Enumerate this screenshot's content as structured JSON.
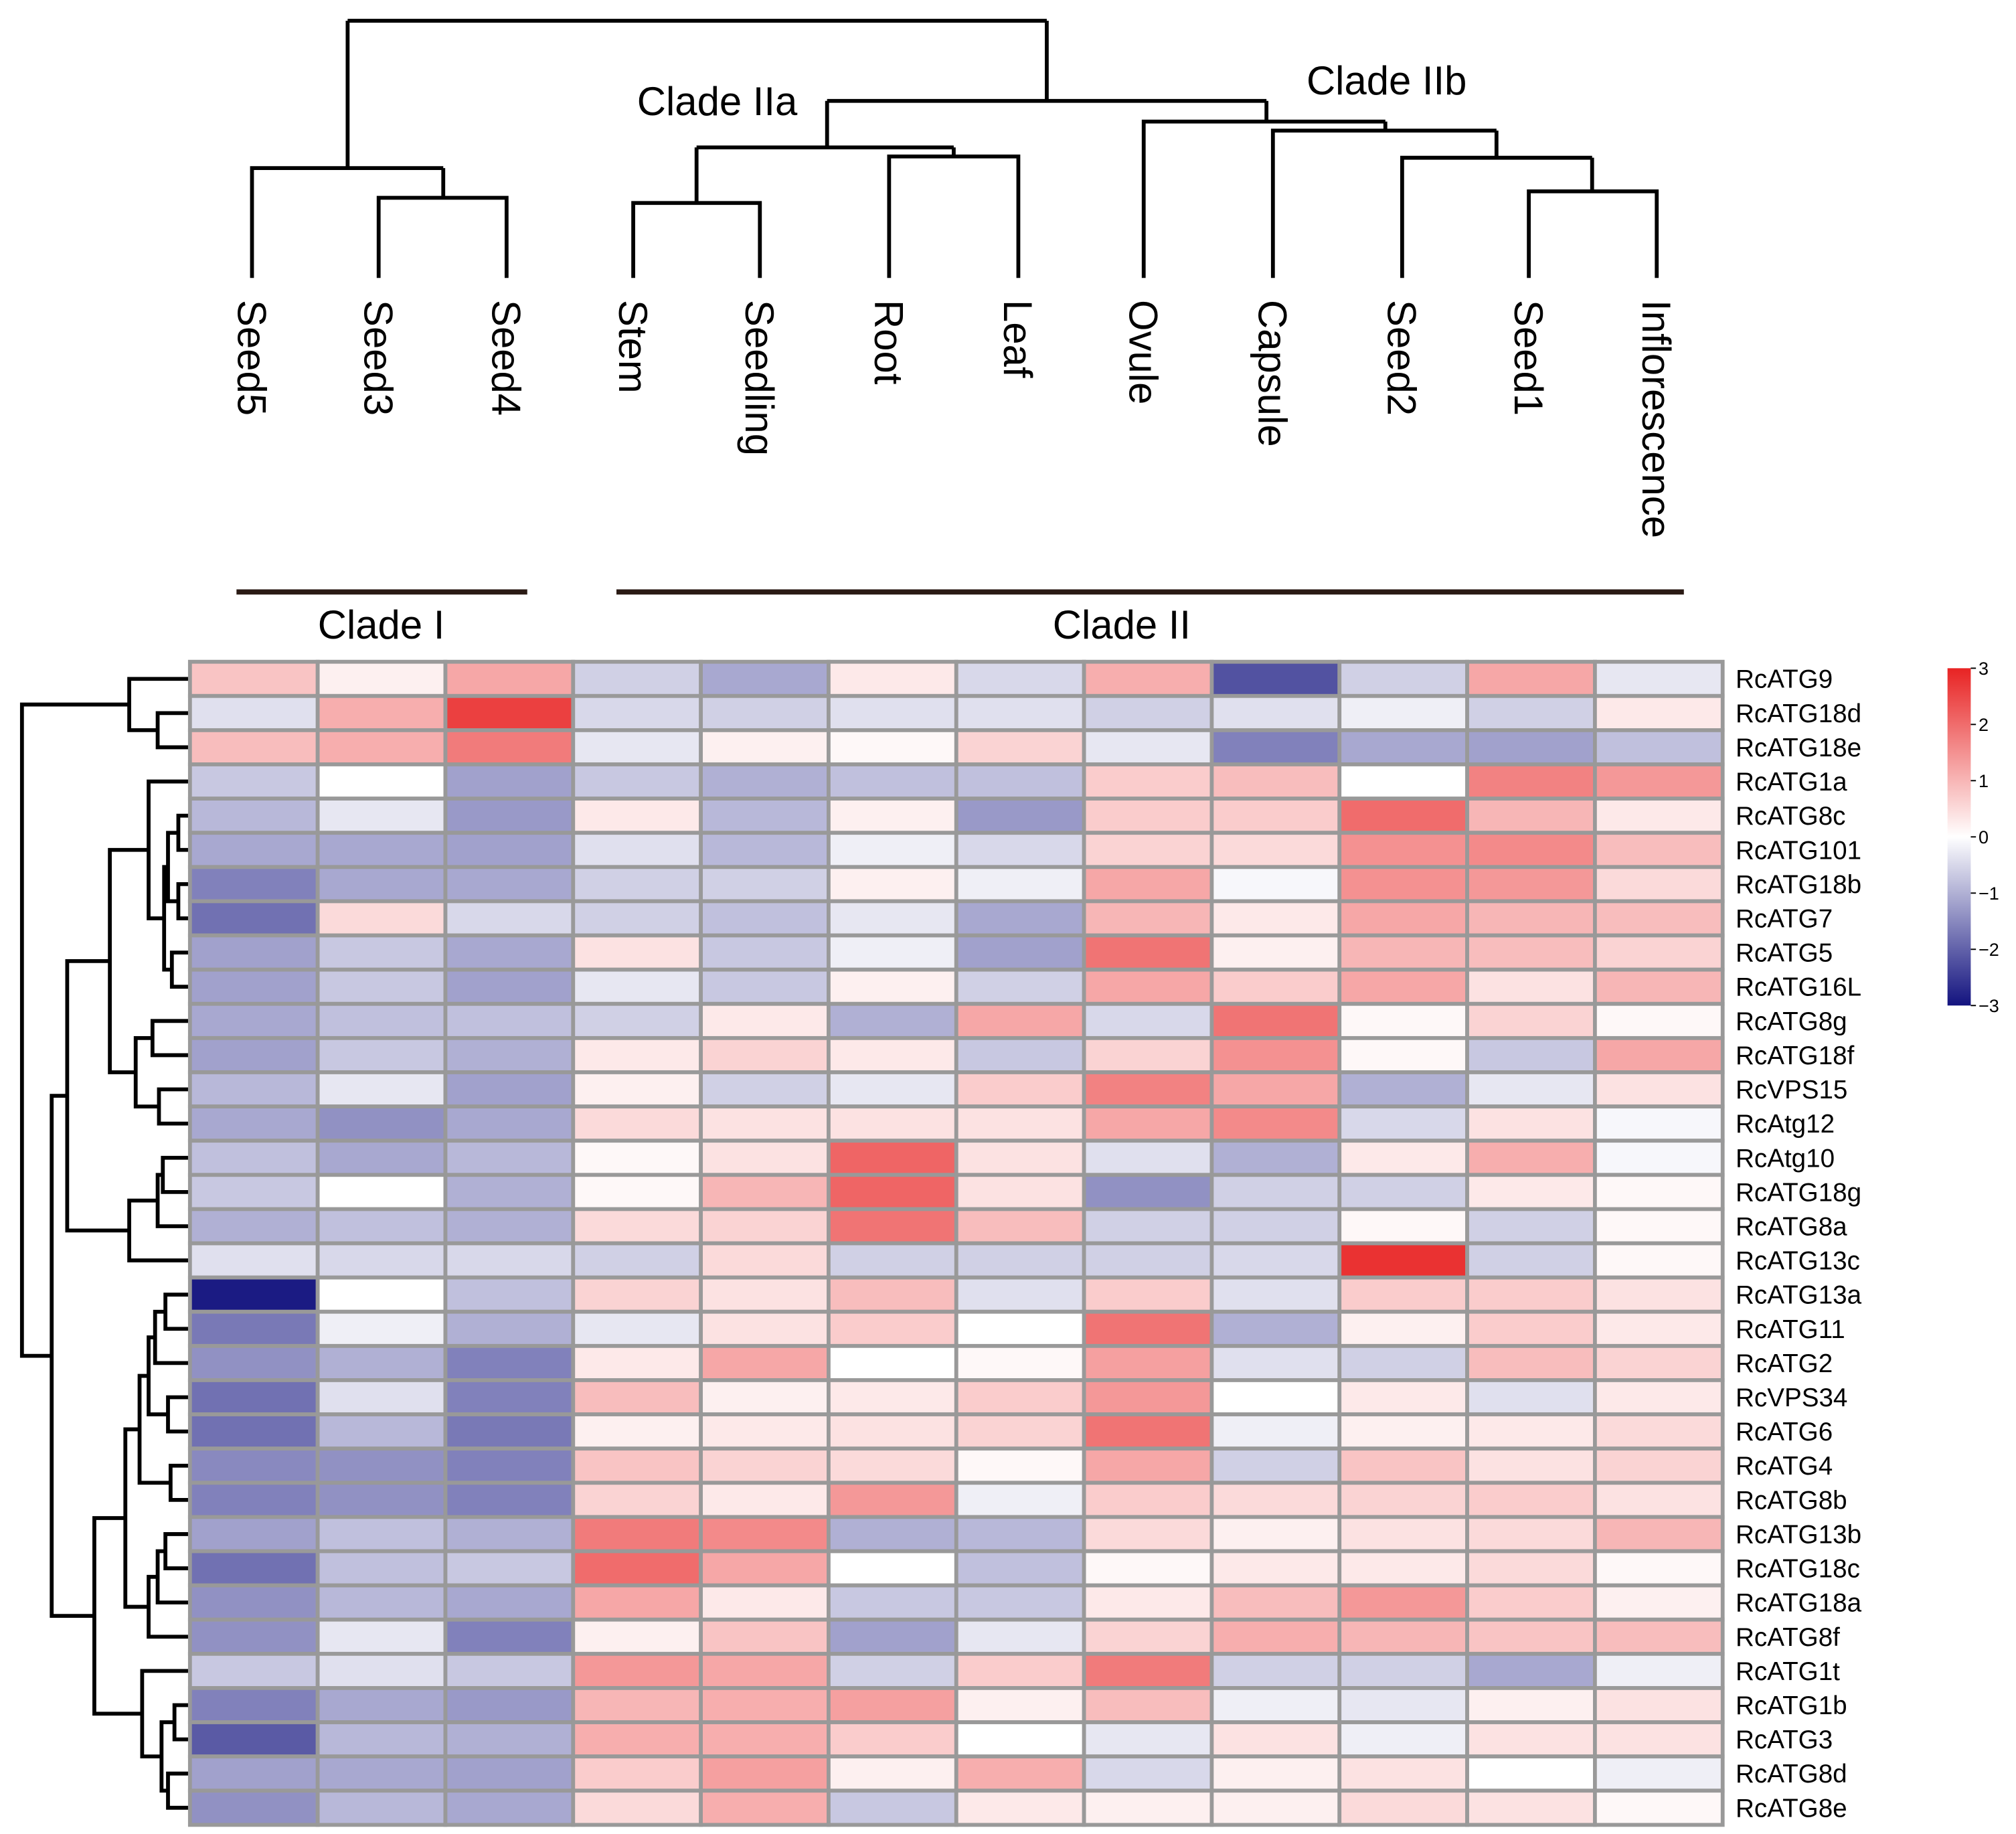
{
  "chart_data": {
    "type": "heatmap",
    "columns": [
      "Seed5",
      "Seed3",
      "Seed4",
      "Stem",
      "Seedling",
      "Root",
      "Leaf",
      "Ovule",
      "Capsule",
      "Seed2",
      "Seed1",
      "Inflorescence"
    ],
    "rows": [
      "RcATG9",
      "RcATG18d",
      "RcATG18e",
      "RcATG1a",
      "RcATG8c",
      "RcATG101",
      "RcATG18b",
      "RcATG7",
      "RcATG5",
      "RcATG16L",
      "RcATG8g",
      "RcATG18f",
      "RcVPS15",
      "RcAtg12",
      "RcAtg10",
      "RcATG18g",
      "RcATG8a",
      "RcATG13c",
      "RcATG13a",
      "RcATG11",
      "RcATG2",
      "RcVPS34",
      "RcATG6",
      "RcATG4",
      "RcATG8b",
      "RcATG13b",
      "RcATG18c",
      "RcATG18a",
      "RcATG8f",
      "RcATG1t",
      "RcATG1b",
      "RcATG3",
      "RcATG8d",
      "RcATG8e"
    ],
    "values": [
      [
        0.8,
        0.2,
        1.2,
        -0.6,
        -1.1,
        0.3,
        -0.5,
        1.1,
        -2.2,
        -0.6,
        1.2,
        -0.3
      ],
      [
        -0.4,
        1.1,
        2.6,
        -0.5,
        -0.6,
        -0.4,
        -0.4,
        -0.6,
        -0.4,
        -0.2,
        -0.6,
        0.3
      ],
      [
        0.9,
        1.1,
        1.8,
        -0.3,
        0.2,
        0.1,
        0.6,
        -0.3,
        -1.6,
        -1.1,
        -1.2,
        -0.8
      ],
      [
        -0.7,
        0.0,
        -1.2,
        -0.7,
        -1.0,
        -0.8,
        -0.8,
        0.7,
        0.9,
        0.0,
        1.7,
        1.4
      ],
      [
        -0.9,
        -0.3,
        -1.3,
        0.3,
        -0.9,
        0.2,
        -1.3,
        0.7,
        0.7,
        2.0,
        1.0,
        0.3
      ],
      [
        -1.1,
        -1.1,
        -1.2,
        -0.4,
        -0.9,
        -0.2,
        -0.5,
        0.6,
        0.5,
        1.5,
        1.6,
        0.9
      ],
      [
        -1.6,
        -1.1,
        -1.1,
        -0.6,
        -0.6,
        0.2,
        -0.2,
        1.2,
        -0.1,
        1.5,
        1.4,
        0.5
      ],
      [
        -1.8,
        0.5,
        -0.5,
        -0.6,
        -0.8,
        -0.3,
        -1.1,
        1.0,
        0.3,
        1.2,
        1.0,
        0.9
      ],
      [
        -1.2,
        -0.7,
        -1.1,
        0.4,
        -0.7,
        -0.2,
        -1.2,
        1.9,
        0.2,
        1.0,
        0.9,
        0.6
      ],
      [
        -1.2,
        -0.7,
        -1.2,
        -0.3,
        -0.7,
        0.2,
        -0.6,
        1.2,
        0.7,
        1.2,
        0.4,
        1.0
      ],
      [
        -1.1,
        -0.8,
        -0.8,
        -0.6,
        0.3,
        -1.0,
        1.2,
        -0.5,
        1.9,
        0.1,
        0.6,
        0.1
      ],
      [
        -1.2,
        -0.7,
        -1.0,
        0.3,
        0.6,
        0.3,
        -0.7,
        0.6,
        1.5,
        0.1,
        -0.7,
        1.2
      ],
      [
        -0.9,
        -0.3,
        -1.2,
        0.2,
        -0.6,
        -0.3,
        0.7,
        1.7,
        1.2,
        -1.0,
        -0.3,
        0.4
      ],
      [
        -1.1,
        -1.4,
        -1.1,
        0.5,
        0.4,
        0.4,
        0.4,
        1.2,
        1.6,
        -0.5,
        0.4,
        -0.1
      ],
      [
        -0.8,
        -1.1,
        -0.9,
        0.1,
        0.4,
        2.1,
        0.4,
        -0.4,
        -1.0,
        0.3,
        1.1,
        -0.1
      ],
      [
        -0.7,
        0.0,
        -1.0,
        0.1,
        1.0,
        2.1,
        0.4,
        -1.4,
        -0.6,
        -0.6,
        0.3,
        0.1
      ],
      [
        -1.0,
        -0.8,
        -1.0,
        0.5,
        0.6,
        1.9,
        0.9,
        -0.6,
        -0.6,
        0.1,
        -0.6,
        0.1
      ],
      [
        -0.4,
        -0.5,
        -0.5,
        -0.6,
        0.5,
        -0.6,
        -0.6,
        -0.6,
        -0.5,
        2.8,
        -0.6,
        0.1
      ],
      [
        -2.9,
        0.0,
        -0.8,
        0.6,
        0.4,
        0.9,
        -0.4,
        0.7,
        -0.4,
        0.7,
        0.7,
        0.4
      ],
      [
        -1.7,
        -0.2,
        -1.0,
        -0.3,
        0.4,
        0.7,
        0.0,
        1.9,
        -1.0,
        0.2,
        0.7,
        0.3
      ],
      [
        -1.4,
        -1.0,
        -1.6,
        0.3,
        1.2,
        0.0,
        0.1,
        1.3,
        -0.4,
        -0.6,
        0.9,
        0.6
      ],
      [
        -1.8,
        -0.4,
        -1.6,
        0.9,
        0.2,
        0.3,
        0.7,
        1.4,
        0.0,
        0.3,
        -0.4,
        0.3
      ],
      [
        -1.8,
        -0.9,
        -1.7,
        0.2,
        0.3,
        0.4,
        0.6,
        1.9,
        -0.2,
        0.2,
        0.3,
        0.5
      ],
      [
        -1.5,
        -1.4,
        -1.6,
        0.8,
        0.6,
        0.5,
        0.1,
        1.2,
        -0.6,
        0.8,
        0.4,
        0.6
      ],
      [
        -1.6,
        -1.4,
        -1.6,
        0.6,
        0.3,
        1.4,
        -0.2,
        0.7,
        0.5,
        0.6,
        0.7,
        0.4
      ],
      [
        -1.2,
        -0.8,
        -1.0,
        1.8,
        1.6,
        -1.0,
        -0.9,
        0.5,
        0.2,
        0.4,
        0.5,
        1.0
      ],
      [
        -1.8,
        -0.8,
        -0.7,
        2.0,
        1.2,
        0.0,
        -0.8,
        0.1,
        0.3,
        0.3,
        0.5,
        0.1
      ],
      [
        -1.4,
        -0.9,
        -1.1,
        1.2,
        0.3,
        -0.7,
        -0.7,
        0.3,
        0.9,
        1.4,
        0.7,
        0.2
      ],
      [
        -1.4,
        -0.3,
        -1.6,
        0.2,
        0.8,
        -1.2,
        -0.3,
        0.6,
        1.1,
        1.0,
        0.8,
        0.9
      ],
      [
        -0.7,
        -0.4,
        -0.7,
        1.4,
        1.2,
        -0.6,
        0.7,
        1.8,
        -0.6,
        -0.6,
        -1.1,
        -0.2
      ],
      [
        -1.6,
        -1.1,
        -1.3,
        1.0,
        1.1,
        1.3,
        0.2,
        0.9,
        -0.2,
        -0.3,
        0.2,
        0.4
      ],
      [
        -2.1,
        -0.9,
        -1.0,
        1.1,
        1.1,
        0.7,
        0.0,
        -0.3,
        0.4,
        -0.2,
        0.4,
        0.4
      ],
      [
        -1.2,
        -1.1,
        -1.2,
        0.7,
        1.3,
        0.2,
        1.1,
        -0.5,
        0.2,
        0.4,
        0.0,
        -0.2
      ],
      [
        -1.4,
        -0.9,
        -1.1,
        0.5,
        1.1,
        -0.7,
        0.3,
        0.2,
        0.2,
        0.5,
        0.4,
        0.1
      ]
    ],
    "zlim": [
      -3,
      3
    ],
    "zticks": [
      3,
      2,
      1,
      0,
      {
        "value": -1,
        "label": "−1"
      },
      {
        "value": -2,
        "label": "−2"
      },
      {
        "value": -3,
        "label": "−3"
      }
    ],
    "colormap": [
      "#13137f",
      "#ffffff",
      "#e82323"
    ],
    "annotations": [
      "Clade IIa",
      "Clade IIb",
      "Clade I",
      "Clade II"
    ]
  }
}
